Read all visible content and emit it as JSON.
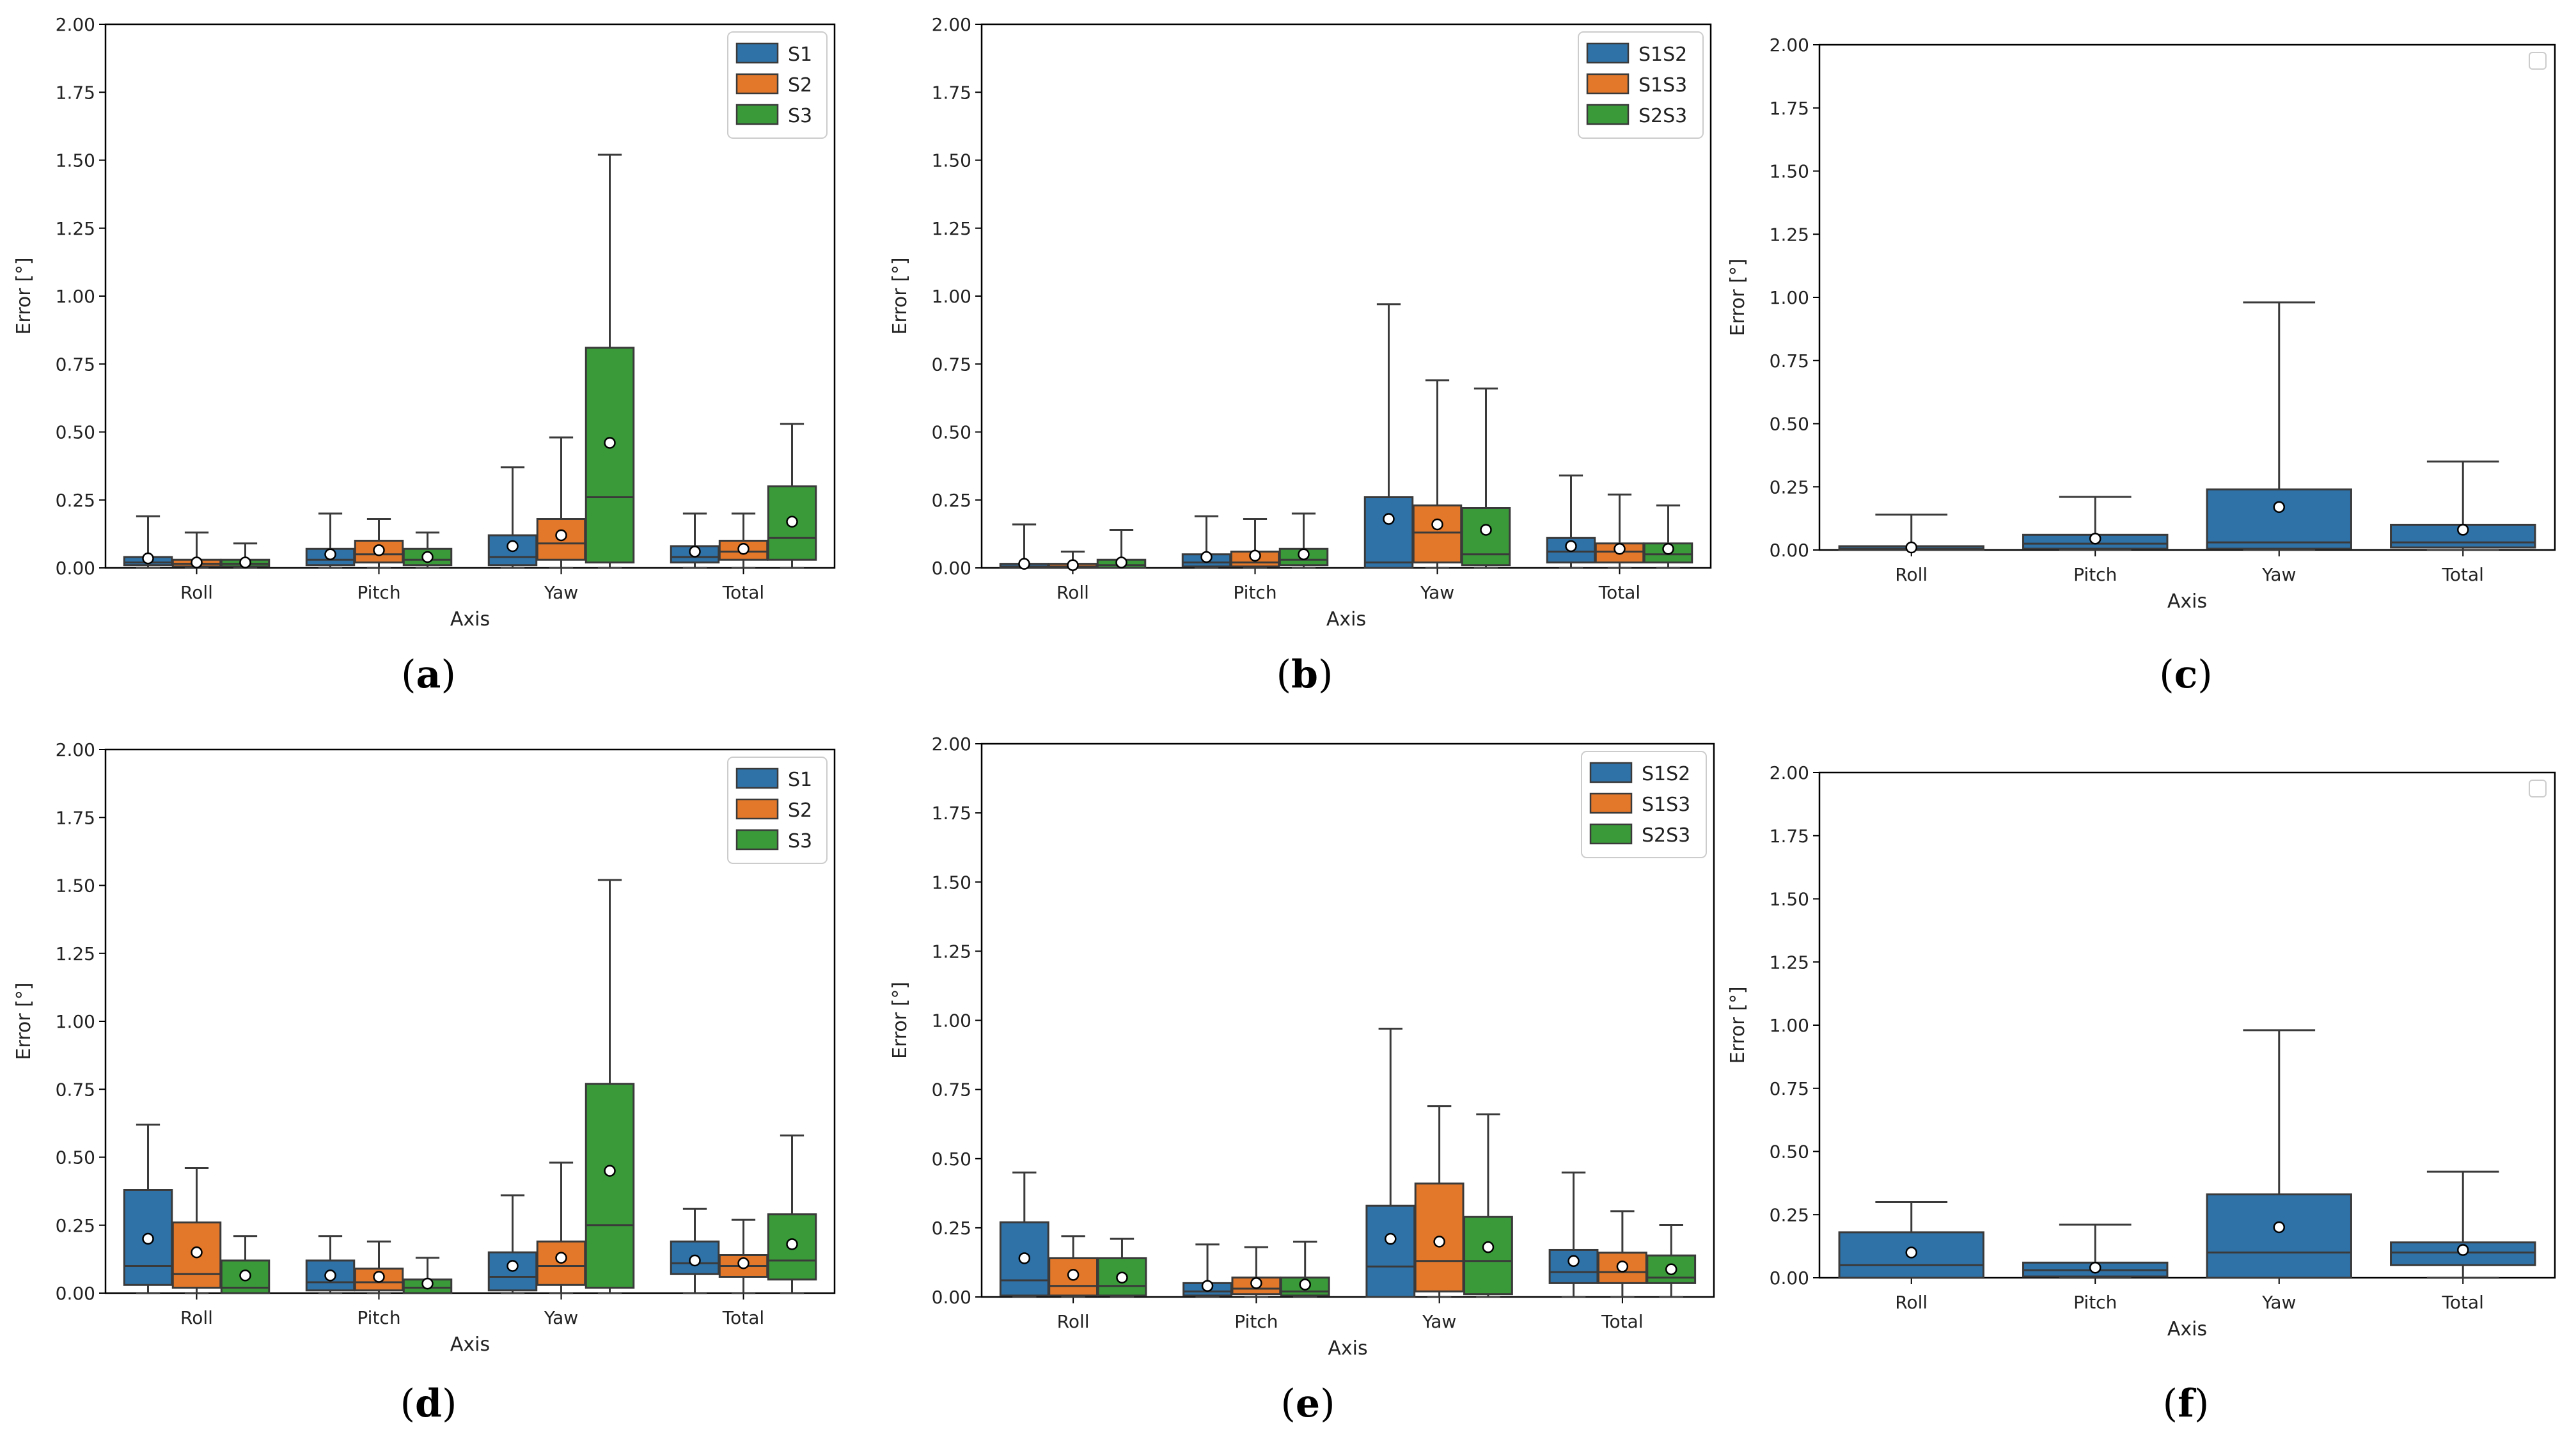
{
  "colors": {
    "S1": "#2f72a8",
    "S2": "#e3782a",
    "S3": "#3a9a3a",
    "S1S2": "#2f72a8",
    "S1S3": "#e3782a",
    "S2S3": "#3a9a3a",
    "single": "#2f72a8",
    "line": "#3a3a3a"
  },
  "chart_data": [
    {
      "panel": "a",
      "label_parts": [
        "(",
        "a",
        ")"
      ],
      "type": "box",
      "xlabel": "Axis",
      "ylabel": "Error [°]",
      "ylim": [
        0,
        2
      ],
      "yticks": [
        "0.00",
        "0.25",
        "0.50",
        "0.75",
        "1.00",
        "1.25",
        "1.50",
        "1.75",
        "2.00"
      ],
      "categories": [
        "Roll",
        "Pitch",
        "Yaw",
        "Total"
      ],
      "legend": [
        "S1",
        "S2",
        "S3"
      ],
      "legend_position": "top-right",
      "series": [
        {
          "name": "S1",
          "boxes": [
            {
              "q1": 0.01,
              "median": 0.02,
              "q3": 0.04,
              "whislo": 0.0,
              "whishi": 0.19,
              "mean": 0.035
            },
            {
              "q1": 0.01,
              "median": 0.03,
              "q3": 0.07,
              "whislo": 0.0,
              "whishi": 0.2,
              "mean": 0.05
            },
            {
              "q1": 0.01,
              "median": 0.04,
              "q3": 0.12,
              "whislo": 0.0,
              "whishi": 0.37,
              "mean": 0.08
            },
            {
              "q1": 0.02,
              "median": 0.04,
              "q3": 0.08,
              "whislo": 0.0,
              "whishi": 0.2,
              "mean": 0.06
            }
          ]
        },
        {
          "name": "S2",
          "boxes": [
            {
              "q1": 0.005,
              "median": 0.015,
              "q3": 0.03,
              "whislo": 0.0,
              "whishi": 0.13,
              "mean": 0.02
            },
            {
              "q1": 0.02,
              "median": 0.05,
              "q3": 0.1,
              "whislo": 0.0,
              "whishi": 0.18,
              "mean": 0.065
            },
            {
              "q1": 0.03,
              "median": 0.09,
              "q3": 0.18,
              "whislo": 0.0,
              "whishi": 0.48,
              "mean": 0.12
            },
            {
              "q1": 0.03,
              "median": 0.06,
              "q3": 0.1,
              "whislo": 0.0,
              "whishi": 0.2,
              "mean": 0.07
            }
          ]
        },
        {
          "name": "S3",
          "boxes": [
            {
              "q1": 0.005,
              "median": 0.015,
              "q3": 0.03,
              "whislo": 0.0,
              "whishi": 0.09,
              "mean": 0.02
            },
            {
              "q1": 0.01,
              "median": 0.03,
              "q3": 0.07,
              "whislo": 0.0,
              "whishi": 0.13,
              "mean": 0.04
            },
            {
              "q1": 0.02,
              "median": 0.26,
              "q3": 0.81,
              "whislo": 0.0,
              "whishi": 1.52,
              "mean": 0.46
            },
            {
              "q1": 0.03,
              "median": 0.11,
              "q3": 0.3,
              "whislo": 0.0,
              "whishi": 0.53,
              "mean": 0.17
            }
          ]
        }
      ]
    },
    {
      "panel": "b",
      "label_parts": [
        "(",
        "b",
        ")"
      ],
      "type": "box",
      "xlabel": "Axis",
      "ylabel": "Error [°]",
      "ylim": [
        0,
        2
      ],
      "yticks": [
        "0.00",
        "0.25",
        "0.50",
        "0.75",
        "1.00",
        "1.25",
        "1.50",
        "1.75",
        "2.00"
      ],
      "categories": [
        "Roll",
        "Pitch",
        "Yaw",
        "Total"
      ],
      "legend": [
        "S1S2",
        "S1S3",
        "S2S3"
      ],
      "legend_position": "top-right",
      "series": [
        {
          "name": "S1S2",
          "boxes": [
            {
              "q1": 0.0,
              "median": 0.005,
              "q3": 0.015,
              "whislo": 0.0,
              "whishi": 0.16,
              "mean": 0.015
            },
            {
              "q1": 0.005,
              "median": 0.02,
              "q3": 0.05,
              "whislo": 0.0,
              "whishi": 0.19,
              "mean": 0.04
            },
            {
              "q1": 0.0,
              "median": 0.02,
              "q3": 0.26,
              "whislo": 0.0,
              "whishi": 0.97,
              "mean": 0.18
            },
            {
              "q1": 0.02,
              "median": 0.06,
              "q3": 0.11,
              "whislo": 0.0,
              "whishi": 0.34,
              "mean": 0.08
            }
          ]
        },
        {
          "name": "S1S3",
          "boxes": [
            {
              "q1": 0.0,
              "median": 0.005,
              "q3": 0.015,
              "whislo": 0.0,
              "whishi": 0.06,
              "mean": 0.01
            },
            {
              "q1": 0.005,
              "median": 0.02,
              "q3": 0.06,
              "whislo": 0.0,
              "whishi": 0.18,
              "mean": 0.045
            },
            {
              "q1": 0.02,
              "median": 0.13,
              "q3": 0.23,
              "whislo": 0.0,
              "whishi": 0.69,
              "mean": 0.16
            },
            {
              "q1": 0.02,
              "median": 0.06,
              "q3": 0.09,
              "whislo": 0.0,
              "whishi": 0.27,
              "mean": 0.07
            }
          ]
        },
        {
          "name": "S2S3",
          "boxes": [
            {
              "q1": 0.0,
              "median": 0.01,
              "q3": 0.03,
              "whislo": 0.0,
              "whishi": 0.14,
              "mean": 0.02
            },
            {
              "q1": 0.01,
              "median": 0.03,
              "q3": 0.07,
              "whislo": 0.0,
              "whishi": 0.2,
              "mean": 0.05
            },
            {
              "q1": 0.01,
              "median": 0.05,
              "q3": 0.22,
              "whislo": 0.0,
              "whishi": 0.66,
              "mean": 0.14
            },
            {
              "q1": 0.02,
              "median": 0.05,
              "q3": 0.09,
              "whislo": 0.0,
              "whishi": 0.23,
              "mean": 0.07
            }
          ]
        }
      ]
    },
    {
      "panel": "c",
      "label_parts": [
        "(",
        "c",
        ")"
      ],
      "type": "box",
      "xlabel": "Axis",
      "ylabel": "Error [°]",
      "ylim": [
        0,
        2
      ],
      "yticks": [
        "0.00",
        "0.25",
        "0.50",
        "0.75",
        "1.00",
        "1.25",
        "1.50",
        "1.75",
        "2.00"
      ],
      "categories": [
        "Roll",
        "Pitch",
        "Yaw",
        "Total"
      ],
      "legend": [],
      "legend_position": "top-right",
      "series": [
        {
          "name": "",
          "boxes": [
            {
              "q1": 0.0,
              "median": 0.005,
              "q3": 0.015,
              "whislo": 0.0,
              "whishi": 0.14,
              "mean": 0.01
            },
            {
              "q1": 0.005,
              "median": 0.025,
              "q3": 0.06,
              "whislo": 0.0,
              "whishi": 0.21,
              "mean": 0.045
            },
            {
              "q1": 0.005,
              "median": 0.03,
              "q3": 0.24,
              "whislo": 0.0,
              "whishi": 0.98,
              "mean": 0.17
            },
            {
              "q1": 0.01,
              "median": 0.03,
              "q3": 0.1,
              "whislo": 0.0,
              "whishi": 0.35,
              "mean": 0.08
            }
          ]
        }
      ]
    },
    {
      "panel": "d",
      "label_parts": [
        "(",
        "d",
        ")"
      ],
      "type": "box",
      "xlabel": "Axis",
      "ylabel": "Error [°]",
      "ylim": [
        0,
        2
      ],
      "yticks": [
        "0.00",
        "0.25",
        "0.50",
        "0.75",
        "1.00",
        "1.25",
        "1.50",
        "1.75",
        "2.00"
      ],
      "categories": [
        "Roll",
        "Pitch",
        "Yaw",
        "Total"
      ],
      "legend": [
        "S1",
        "S2",
        "S3"
      ],
      "legend_position": "top-right",
      "series": [
        {
          "name": "S1",
          "boxes": [
            {
              "q1": 0.03,
              "median": 0.1,
              "q3": 0.38,
              "whislo": 0.0,
              "whishi": 0.62,
              "mean": 0.2
            },
            {
              "q1": 0.01,
              "median": 0.04,
              "q3": 0.12,
              "whislo": 0.0,
              "whishi": 0.21,
              "mean": 0.065
            },
            {
              "q1": 0.01,
              "median": 0.06,
              "q3": 0.15,
              "whislo": 0.0,
              "whishi": 0.36,
              "mean": 0.1
            },
            {
              "q1": 0.07,
              "median": 0.11,
              "q3": 0.19,
              "whislo": 0.0,
              "whishi": 0.31,
              "mean": 0.12
            }
          ]
        },
        {
          "name": "S2",
          "boxes": [
            {
              "q1": 0.02,
              "median": 0.07,
              "q3": 0.26,
              "whislo": 0.0,
              "whishi": 0.46,
              "mean": 0.15
            },
            {
              "q1": 0.01,
              "median": 0.04,
              "q3": 0.09,
              "whislo": 0.0,
              "whishi": 0.19,
              "mean": 0.06
            },
            {
              "q1": 0.03,
              "median": 0.1,
              "q3": 0.19,
              "whislo": 0.0,
              "whishi": 0.48,
              "mean": 0.13
            },
            {
              "q1": 0.06,
              "median": 0.1,
              "q3": 0.14,
              "whislo": 0.0,
              "whishi": 0.27,
              "mean": 0.11
            }
          ]
        },
        {
          "name": "S3",
          "boxes": [
            {
              "q1": 0.0,
              "median": 0.02,
              "q3": 0.12,
              "whislo": 0.0,
              "whishi": 0.21,
              "mean": 0.065
            },
            {
              "q1": 0.0,
              "median": 0.02,
              "q3": 0.05,
              "whislo": 0.0,
              "whishi": 0.13,
              "mean": 0.035
            },
            {
              "q1": 0.02,
              "median": 0.25,
              "q3": 0.77,
              "whislo": 0.0,
              "whishi": 1.52,
              "mean": 0.45
            },
            {
              "q1": 0.05,
              "median": 0.12,
              "q3": 0.29,
              "whislo": 0.0,
              "whishi": 0.58,
              "mean": 0.18
            }
          ]
        }
      ]
    },
    {
      "panel": "e",
      "label_parts": [
        "(",
        "e",
        ")"
      ],
      "type": "box",
      "xlabel": "Axis",
      "ylabel": "Error [°]",
      "ylim": [
        0,
        2
      ],
      "yticks": [
        "0.00",
        "0.25",
        "0.50",
        "0.75",
        "1.00",
        "1.25",
        "1.50",
        "1.75",
        "2.00"
      ],
      "categories": [
        "Roll",
        "Pitch",
        "Yaw",
        "Total"
      ],
      "legend": [
        "S1S2",
        "S1S3",
        "S2S3"
      ],
      "legend_position": "top-right",
      "series": [
        {
          "name": "S1S2",
          "boxes": [
            {
              "q1": 0.005,
              "median": 0.06,
              "q3": 0.27,
              "whislo": 0.0,
              "whishi": 0.45,
              "mean": 0.14
            },
            {
              "q1": 0.005,
              "median": 0.02,
              "q3": 0.05,
              "whislo": 0.0,
              "whishi": 0.19,
              "mean": 0.04
            },
            {
              "q1": 0.0,
              "median": 0.11,
              "q3": 0.33,
              "whislo": 0.0,
              "whishi": 0.97,
              "mean": 0.21
            },
            {
              "q1": 0.05,
              "median": 0.09,
              "q3": 0.17,
              "whislo": 0.0,
              "whishi": 0.45,
              "mean": 0.13
            }
          ]
        },
        {
          "name": "S1S3",
          "boxes": [
            {
              "q1": 0.005,
              "median": 0.04,
              "q3": 0.14,
              "whislo": 0.0,
              "whishi": 0.22,
              "mean": 0.08
            },
            {
              "q1": 0.01,
              "median": 0.03,
              "q3": 0.07,
              "whislo": 0.0,
              "whishi": 0.18,
              "mean": 0.05
            },
            {
              "q1": 0.02,
              "median": 0.13,
              "q3": 0.41,
              "whislo": 0.0,
              "whishi": 0.69,
              "mean": 0.2
            },
            {
              "q1": 0.05,
              "median": 0.09,
              "q3": 0.16,
              "whislo": 0.0,
              "whishi": 0.31,
              "mean": 0.11
            }
          ]
        },
        {
          "name": "S2S3",
          "boxes": [
            {
              "q1": 0.005,
              "median": 0.04,
              "q3": 0.14,
              "whislo": 0.0,
              "whishi": 0.21,
              "mean": 0.07
            },
            {
              "q1": 0.005,
              "median": 0.02,
              "q3": 0.07,
              "whislo": 0.0,
              "whishi": 0.2,
              "mean": 0.045
            },
            {
              "q1": 0.01,
              "median": 0.13,
              "q3": 0.29,
              "whislo": 0.0,
              "whishi": 0.66,
              "mean": 0.18
            },
            {
              "q1": 0.05,
              "median": 0.07,
              "q3": 0.15,
              "whislo": 0.0,
              "whishi": 0.26,
              "mean": 0.1
            }
          ]
        }
      ]
    },
    {
      "panel": "f",
      "label_parts": [
        "(",
        "f",
        ")"
      ],
      "type": "box",
      "xlabel": "Axis",
      "ylabel": "Error [°]",
      "ylim": [
        0,
        2
      ],
      "yticks": [
        "0.00",
        "0.25",
        "0.50",
        "0.75",
        "1.00",
        "1.25",
        "1.50",
        "1.75",
        "2.00"
      ],
      "categories": [
        "Roll",
        "Pitch",
        "Yaw",
        "Total"
      ],
      "legend": [],
      "legend_position": "top-right",
      "series": [
        {
          "name": "",
          "boxes": [
            {
              "q1": 0.0,
              "median": 0.05,
              "q3": 0.18,
              "whislo": 0.0,
              "whishi": 0.3,
              "mean": 0.1
            },
            {
              "q1": 0.005,
              "median": 0.03,
              "q3": 0.06,
              "whislo": 0.0,
              "whishi": 0.21,
              "mean": 0.04
            },
            {
              "q1": 0.0,
              "median": 0.1,
              "q3": 0.33,
              "whislo": 0.0,
              "whishi": 0.98,
              "mean": 0.2
            },
            {
              "q1": 0.05,
              "median": 0.1,
              "q3": 0.14,
              "whislo": 0.0,
              "whishi": 0.42,
              "mean": 0.11
            }
          ]
        }
      ]
    }
  ]
}
